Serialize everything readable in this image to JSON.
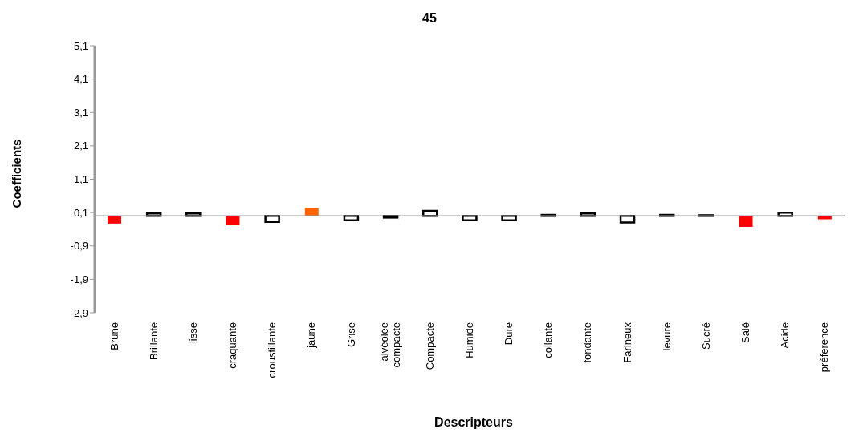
{
  "chart_data": {
    "type": "bar",
    "title": "45",
    "xlabel": "Descripteurs",
    "ylabel": "Coefficients",
    "categories": [
      "Brune",
      "Brillante",
      "lisse",
      "craquante",
      "croustillante",
      "jaune",
      "Grise",
      "alvéolée compacte",
      "Compacte",
      "Humide",
      "Dure",
      "collante",
      "fondante",
      "Farineux",
      "levure",
      "Sucré",
      "Salé",
      "Acide",
      "préference"
    ],
    "values": [
      -0.23,
      0.07,
      0.07,
      -0.28,
      -0.18,
      0.24,
      -0.13,
      -0.05,
      0.15,
      -0.13,
      -0.13,
      0.03,
      0.07,
      -0.2,
      0.03,
      0.02,
      -0.33,
      0.1,
      -0.1
    ],
    "colors": [
      "#ff0000",
      "#ffffff",
      "#ffffff",
      "#ff0000",
      "#ffffff",
      "#ff6600",
      "#ffffff",
      "#ffffff",
      "#ffffff",
      "#ffffff",
      "#ffffff",
      "#ffffff",
      "#ffffff",
      "#ffffff",
      "#ffffff",
      "#ffffff",
      "#ff0000",
      "#ffffff",
      "#ff0000"
    ],
    "ylim": [
      -2.9,
      5.1
    ],
    "yticks": [
      {
        "value": -2.9,
        "label": "-2,9"
      },
      {
        "value": -1.9,
        "label": "-1,9"
      },
      {
        "value": -0.9,
        "label": "-0,9"
      },
      {
        "value": 0.1,
        "label": "0,1"
      },
      {
        "value": 1.1,
        "label": "1,1"
      },
      {
        "value": 2.1,
        "label": "2,1"
      },
      {
        "value": 3.1,
        "label": "3,1"
      },
      {
        "value": 4.1,
        "label": "4,1"
      },
      {
        "value": 5.1,
        "label": "5,1"
      }
    ],
    "grid": false,
    "legend": false
  }
}
